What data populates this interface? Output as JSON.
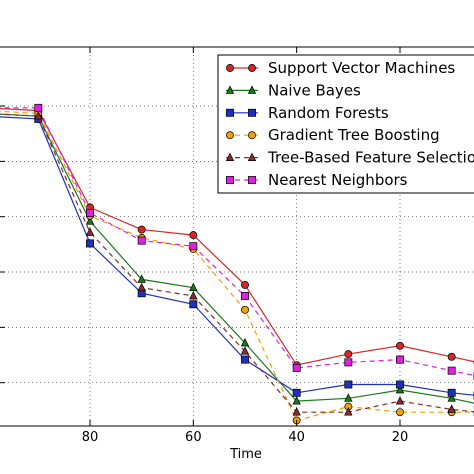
{
  "chart_data": {
    "type": "line",
    "title": "",
    "xlabel": "Time",
    "ylabel": "",
    "xlim": [
      110,
      7
    ],
    "xticks": [
      80,
      60,
      40,
      20
    ],
    "grid": true,
    "legend_position": "top-right",
    "x": [
      100,
      90,
      80,
      70,
      60,
      50,
      40,
      30,
      20,
      10,
      5
    ],
    "series": [
      {
        "name": "Support Vector Machines",
        "color": "#d62728",
        "marker": "circle",
        "linestyle": "solid",
        "values": [
          11.5,
          11.4,
          7.9,
          7.1,
          6.9,
          5.1,
          2.2,
          2.6,
          2.9,
          2.5,
          2.3
        ]
      },
      {
        "name": "Naive Bayes",
        "color": "#1a7a1a",
        "marker": "triangle",
        "linestyle": "solid",
        "values": [
          11.3,
          11.2,
          7.4,
          5.3,
          5.0,
          3.0,
          0.9,
          1.0,
          1.3,
          1.0,
          0.8
        ]
      },
      {
        "name": "Random Forests",
        "color": "#1f2fbf",
        "marker": "square",
        "linestyle": "solid",
        "values": [
          11.2,
          11.1,
          6.6,
          4.8,
          4.4,
          2.4,
          1.2,
          1.5,
          1.5,
          1.2,
          1.1
        ]
      },
      {
        "name": "Gradient Tree Boosting",
        "color": "#f2a000",
        "marker": "circle",
        "linestyle": "dashed",
        "values": [
          11.4,
          11.3,
          7.6,
          6.8,
          6.4,
          4.2,
          0.2,
          0.7,
          0.5,
          0.5,
          0.5
        ]
      },
      {
        "name": "Tree-Based Feature Selection",
        "color": "#8b2a2a",
        "marker": "triangle",
        "linestyle": "dashed",
        "values": [
          11.3,
          11.2,
          7.0,
          5.0,
          4.7,
          2.7,
          0.5,
          0.5,
          0.9,
          0.6,
          0.5
        ]
      },
      {
        "name": "Nearest Neighbors",
        "color": "#e020e0",
        "marker": "square",
        "linestyle": "dashed",
        "values": [
          11.5,
          11.5,
          7.7,
          6.7,
          6.5,
          4.7,
          2.1,
          2.3,
          2.4,
          2.0,
          1.8
        ]
      }
    ]
  }
}
